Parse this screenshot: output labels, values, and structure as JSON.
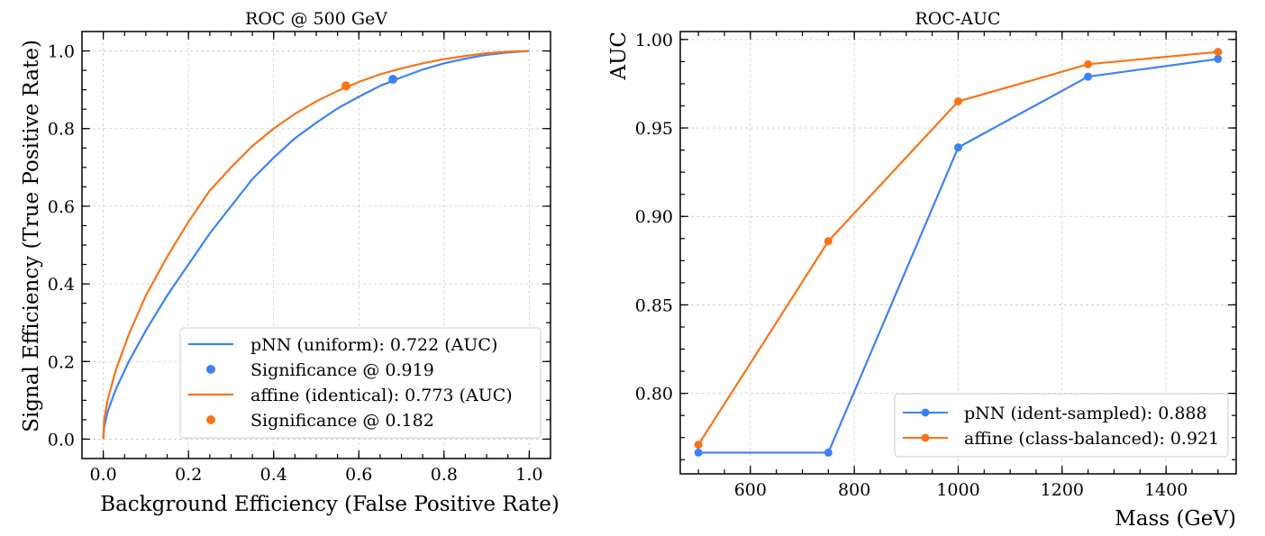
{
  "chart_data": [
    {
      "type": "line",
      "title": "ROC @ 500 GeV",
      "xlabel": "Background Efficiency (False Positive Rate)",
      "ylabel": "Signal Efficiency (True Positive Rate)",
      "xlim": [
        -0.05,
        1.05
      ],
      "ylim": [
        -0.05,
        1.05
      ],
      "xticks": [
        0.0,
        0.2,
        0.4,
        0.6,
        0.8,
        1.0
      ],
      "xtick_labels": [
        "0.0",
        "0.2",
        "0.4",
        "0.6",
        "0.8",
        "1.0"
      ],
      "yticks": [
        0.0,
        0.2,
        0.4,
        0.6,
        0.8,
        1.0
      ],
      "ytick_labels": [
        "0.0",
        "0.2",
        "0.4",
        "0.6",
        "0.8",
        "1.0"
      ],
      "grid": true,
      "legend_position": "bottom-right",
      "series": [
        {
          "name": "pNN (uniform): 0.722 (AUC)",
          "color": "#3b82f6",
          "x": [
            0.0,
            0.002,
            0.01,
            0.03,
            0.06,
            0.1,
            0.15,
            0.2,
            0.25,
            0.3,
            0.35,
            0.4,
            0.45,
            0.5,
            0.55,
            0.6,
            0.65,
            0.7,
            0.75,
            0.8,
            0.85,
            0.9,
            0.95,
            1.0
          ],
          "y": [
            0.0,
            0.03,
            0.07,
            0.13,
            0.2,
            0.28,
            0.37,
            0.45,
            0.53,
            0.6,
            0.67,
            0.725,
            0.775,
            0.815,
            0.852,
            0.882,
            0.91,
            0.932,
            0.952,
            0.968,
            0.98,
            0.99,
            0.996,
            1.0
          ]
        },
        {
          "name": "Significance @ 0.919",
          "color": "#3b82f6",
          "marker_only": true,
          "x": [
            0.68
          ],
          "y": [
            0.927
          ]
        },
        {
          "name": "affine (identical): 0.773 (AUC)",
          "color": "#f97316",
          "x": [
            0.0,
            0.002,
            0.01,
            0.03,
            0.06,
            0.1,
            0.15,
            0.2,
            0.25,
            0.3,
            0.35,
            0.4,
            0.45,
            0.5,
            0.55,
            0.6,
            0.65,
            0.7,
            0.75,
            0.8,
            0.85,
            0.9,
            0.95,
            1.0
          ],
          "y": [
            0.0,
            0.05,
            0.1,
            0.18,
            0.27,
            0.37,
            0.47,
            0.56,
            0.64,
            0.7,
            0.755,
            0.8,
            0.838,
            0.87,
            0.897,
            0.92,
            0.94,
            0.955,
            0.968,
            0.979,
            0.987,
            0.994,
            0.998,
            1.0
          ]
        },
        {
          "name": "Significance @ 0.182",
          "color": "#f97316",
          "marker_only": true,
          "x": [
            0.57
          ],
          "y": [
            0.91
          ]
        }
      ]
    },
    {
      "type": "line",
      "title": "ROC-AUC",
      "xlabel": "Mass (GeV)",
      "ylabel": "AUC",
      "xlim": [
        465,
        1535
      ],
      "ylim": [
        0.7545,
        1.0045
      ],
      "xticks": [
        600,
        800,
        1000,
        1200,
        1400
      ],
      "xtick_labels": [
        "600",
        "800",
        "1000",
        "1200",
        "1400"
      ],
      "yticks": [
        0.8,
        0.85,
        0.9,
        0.95,
        1.0
      ],
      "ytick_labels": [
        "0.80",
        "0.85",
        "0.90",
        "0.95",
        "1.00"
      ],
      "grid": true,
      "legend_position": "bottom-right",
      "series": [
        {
          "name": "pNN (ident-sampled): 0.888",
          "color": "#3b82f6",
          "x": [
            500,
            750,
            1000,
            1250,
            1500
          ],
          "y": [
            0.7665,
            0.7665,
            0.939,
            0.979,
            0.989
          ]
        },
        {
          "name": "affine (class-balanced): 0.921",
          "color": "#f97316",
          "x": [
            500,
            750,
            1000,
            1250,
            1500
          ],
          "y": [
            0.771,
            0.886,
            0.965,
            0.986,
            0.993
          ]
        }
      ]
    }
  ]
}
